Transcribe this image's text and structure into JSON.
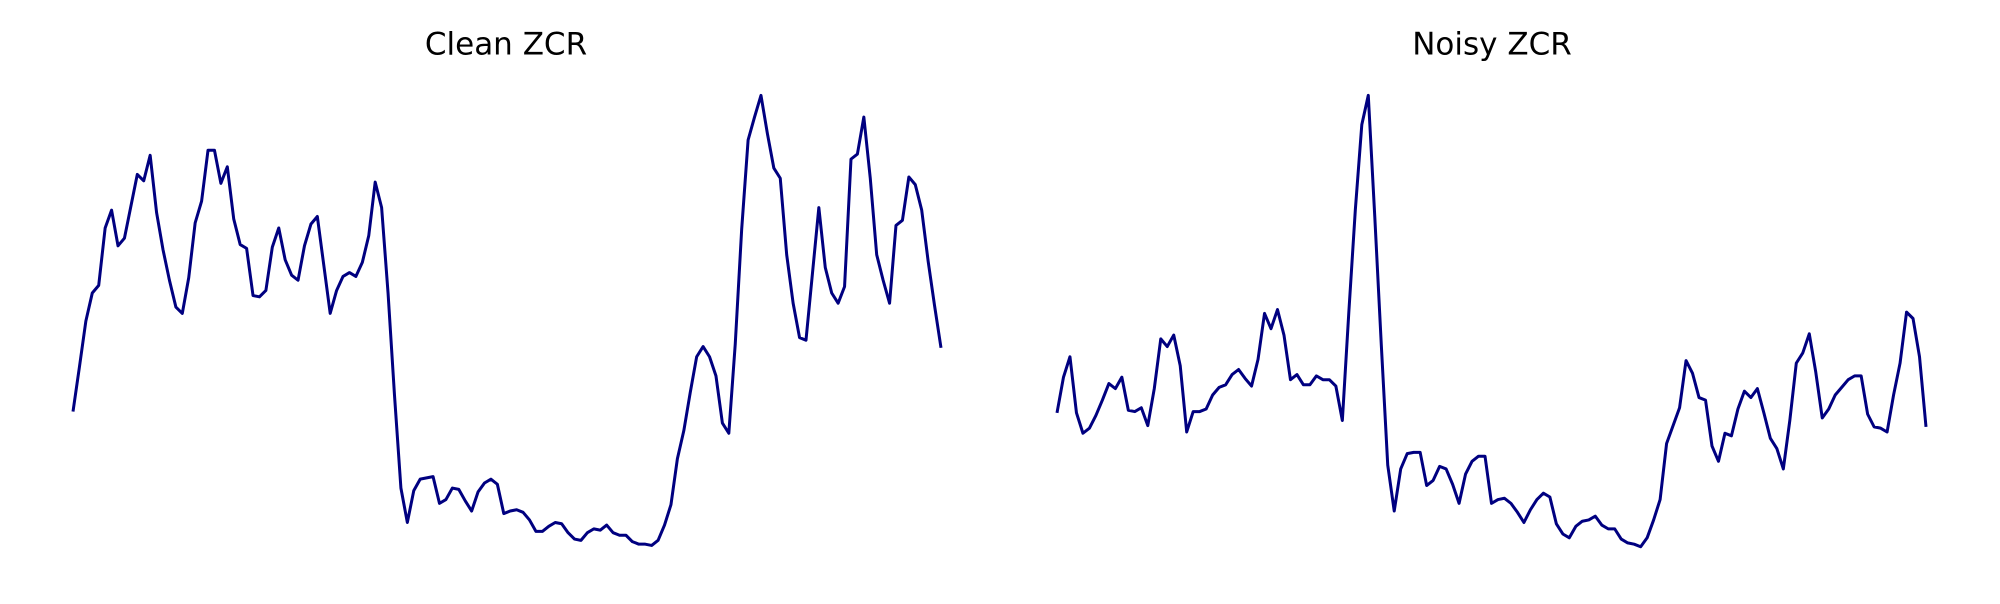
{
  "chart_data": [
    {
      "type": "line",
      "title": "Clean ZCR",
      "color": "#000080",
      "ylim": [
        0,
        360
      ],
      "values": [
        107,
        142,
        178,
        200,
        206,
        251,
        265,
        237,
        243,
        268,
        293,
        288,
        308,
        263,
        234,
        210,
        189,
        184,
        212,
        255,
        272,
        312,
        312,
        286,
        299,
        258,
        238,
        235,
        198,
        197,
        202,
        236,
        251,
        226,
        214,
        210,
        237,
        254,
        260,
        222,
        184,
        202,
        213,
        216,
        213,
        224,
        245,
        287,
        267,
        200,
        120,
        47,
        20,
        45,
        54,
        55,
        56,
        35,
        38,
        47,
        46,
        37,
        29,
        44,
        51,
        54,
        50,
        27,
        29,
        30,
        28,
        22,
        13,
        13,
        17,
        20,
        19,
        12,
        7,
        6,
        12,
        15,
        14,
        18,
        12,
        10,
        10,
        5,
        3,
        3,
        2,
        6,
        18,
        34,
        70,
        92,
        122,
        150,
        158,
        150,
        135,
        98,
        90,
        160,
        250,
        320,
        338,
        355,
        325,
        298,
        290,
        230,
        192,
        165,
        163,
        215,
        267,
        220,
        200,
        192,
        205,
        305,
        309,
        338,
        290,
        230,
        210,
        192,
        253,
        257,
        291,
        285,
        265,
        225,
        190,
        157
      ]
    },
    {
      "type": "line",
      "title": "Noisy ZCR",
      "color": "#000080",
      "ylim": [
        0,
        360
      ],
      "values": [
        106,
        134,
        150,
        106,
        90,
        94,
        104,
        116,
        129,
        125,
        134,
        108,
        107,
        110,
        96,
        125,
        164,
        158,
        167,
        143,
        91,
        107,
        107,
        109,
        120,
        126,
        128,
        136,
        140,
        133,
        127,
        148,
        184,
        172,
        187,
        167,
        132,
        136,
        128,
        128,
        135,
        132,
        132,
        127,
        100,
        185,
        265,
        332,
        355,
        260,
        160,
        65,
        29,
        62,
        74,
        75,
        75,
        49,
        53,
        64,
        62,
        50,
        35,
        58,
        68,
        72,
        72,
        35,
        38,
        39,
        35,
        28,
        20,
        30,
        38,
        43,
        40,
        19,
        11,
        8,
        17,
        21,
        22,
        25,
        18,
        15,
        15,
        7,
        4,
        3,
        1,
        8,
        22,
        38,
        82,
        96,
        110,
        147,
        137,
        118,
        116,
        80,
        68,
        90,
        88,
        109,
        123,
        118,
        125,
        106,
        86,
        78,
        62,
        100,
        145,
        153,
        168,
        138,
        102,
        109,
        120,
        126,
        132,
        135,
        135,
        105,
        95,
        94,
        91,
        120,
        145,
        185,
        180,
        150,
        95
      ]
    }
  ]
}
